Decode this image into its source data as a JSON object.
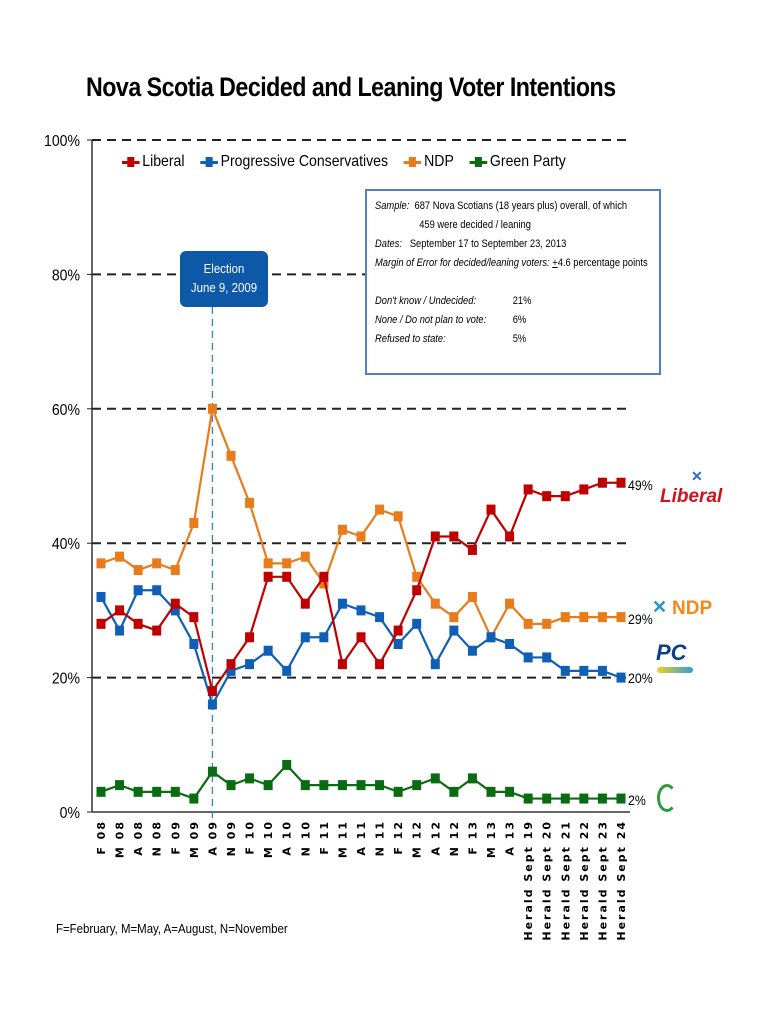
{
  "chart_data": {
    "type": "line",
    "title": "Nova Scotia Decided and Leaning Voter Intentions",
    "xlabel": "",
    "ylabel": "",
    "ylim": [
      0,
      100
    ],
    "y_ticks": [
      "0%",
      "20%",
      "40%",
      "60%",
      "80%",
      "100%"
    ],
    "y_tick_values": [
      0,
      20,
      40,
      60,
      80,
      100
    ],
    "grid": "dashed horizontal at 20% intervals",
    "legend_position": "top-left",
    "categories": [
      "F 08",
      "M 08",
      "A 08",
      "N 08",
      "F 09",
      "M 09",
      "A 09",
      "N 09",
      "F 10",
      "M 10",
      "A 10",
      "N 10",
      "F 11",
      "M 11",
      "A 11",
      "N 11",
      "F 12",
      "M 12",
      "A 12",
      "N 12",
      "F 13",
      "M 13",
      "A 13",
      "Herald Sept 19",
      "Herald Sept 20",
      "Herald Sept 21",
      "Herald Sept 22",
      "Herald Sept 23",
      "Herald Sept 24"
    ],
    "series": [
      {
        "name": "Liberal",
        "color": "#c00000",
        "values": [
          28,
          30,
          28,
          27,
          31,
          29,
          18,
          22,
          26,
          35,
          35,
          31,
          35,
          22,
          26,
          22,
          27,
          33,
          41,
          41,
          39,
          45,
          41,
          48,
          47,
          47,
          48,
          49,
          49
        ],
        "end_label": "49%"
      },
      {
        "name": "Progressive Conservatives",
        "color": "#0e5fb5",
        "values": [
          32,
          27,
          33,
          33,
          30,
          25,
          16,
          21,
          22,
          24,
          21,
          26,
          26,
          31,
          30,
          29,
          25,
          28,
          22,
          27,
          24,
          26,
          25,
          23,
          23,
          21,
          21,
          21,
          20
        ],
        "end_label": "20%"
      },
      {
        "name": "NDP",
        "color": "#e87b1c",
        "values": [
          37,
          38,
          36,
          37,
          36,
          43,
          60,
          53,
          46,
          37,
          37,
          38,
          34,
          42,
          41,
          45,
          44,
          35,
          31,
          29,
          32,
          26,
          31,
          28,
          28,
          29,
          29,
          29,
          29
        ],
        "end_label": "29%"
      },
      {
        "name": "Green Party",
        "color": "#0b6b12",
        "values": [
          3,
          4,
          3,
          3,
          3,
          2,
          6,
          4,
          5,
          4,
          7,
          4,
          4,
          4,
          4,
          4,
          3,
          4,
          5,
          3,
          5,
          3,
          3,
          2,
          2,
          2,
          2,
          2,
          2
        ],
        "end_label": "2%"
      }
    ],
    "annotations": [
      {
        "type": "vertical-line",
        "category": "A 09",
        "label_line1": "Election",
        "label_line2": "June 9, 2009"
      }
    ]
  },
  "infobox": {
    "sample_label": "Sample:",
    "sample_text": "687 Nova Scotians (18 years plus) overall, of which",
    "sample_text2": "459 were decided / leaning",
    "dates_label": "Dates:",
    "dates_text": "September 17 to September 23, 2013",
    "moe_label": "Margin of Error for decided/leaning voters:",
    "moe_pm": "+",
    "moe_value": "4.6 percentage points",
    "rows": [
      {
        "label": "Don't know / Undecided:",
        "value": "21%"
      },
      {
        "label": "None / Do not plan to vote:",
        "value": "6%"
      },
      {
        "label": "Refused to state:",
        "value": "5%"
      }
    ]
  },
  "logos": {
    "liberal": "Liberal",
    "ndp": "NDP",
    "pc": "PC"
  },
  "footnote": "F=February, M=May, A=August, N=November"
}
